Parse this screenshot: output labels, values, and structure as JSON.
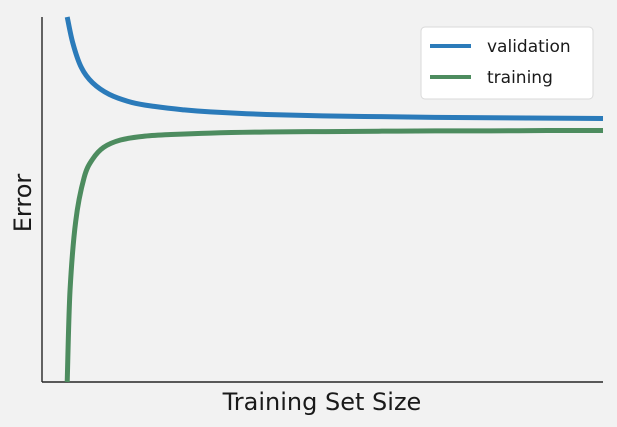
{
  "chart_data": {
    "type": "line",
    "title": "",
    "xlabel": "Training Set Size",
    "ylabel": "Error",
    "xticks": [],
    "yticks": [],
    "grid": false,
    "legend_position": "top-right",
    "series": [
      {
        "name": "validation",
        "color": "#2b7bba",
        "x": [
          0.045,
          0.055,
          0.07,
          0.09,
          0.12,
          0.16,
          0.2,
          0.25,
          0.3,
          0.4,
          0.5,
          0.6,
          0.7,
          0.8,
          0.9,
          1.0
        ],
        "y": [
          1.0,
          0.928,
          0.862,
          0.82,
          0.788,
          0.766,
          0.755,
          0.746,
          0.74,
          0.733,
          0.729,
          0.727,
          0.725,
          0.724,
          0.723,
          0.722
        ]
      },
      {
        "name": "training",
        "color": "#4d8c5f",
        "x": [
          0.045,
          0.05,
          0.06,
          0.075,
          0.09,
          0.11,
          0.14,
          0.18,
          0.23,
          0.3,
          0.4,
          0.5,
          0.6,
          0.7,
          0.8,
          0.9,
          1.0
        ],
        "y": [
          0.0,
          0.25,
          0.44,
          0.56,
          0.61,
          0.643,
          0.663,
          0.673,
          0.678,
          0.682,
          0.685,
          0.686,
          0.687,
          0.688,
          0.688,
          0.689,
          0.689
        ]
      }
    ]
  }
}
